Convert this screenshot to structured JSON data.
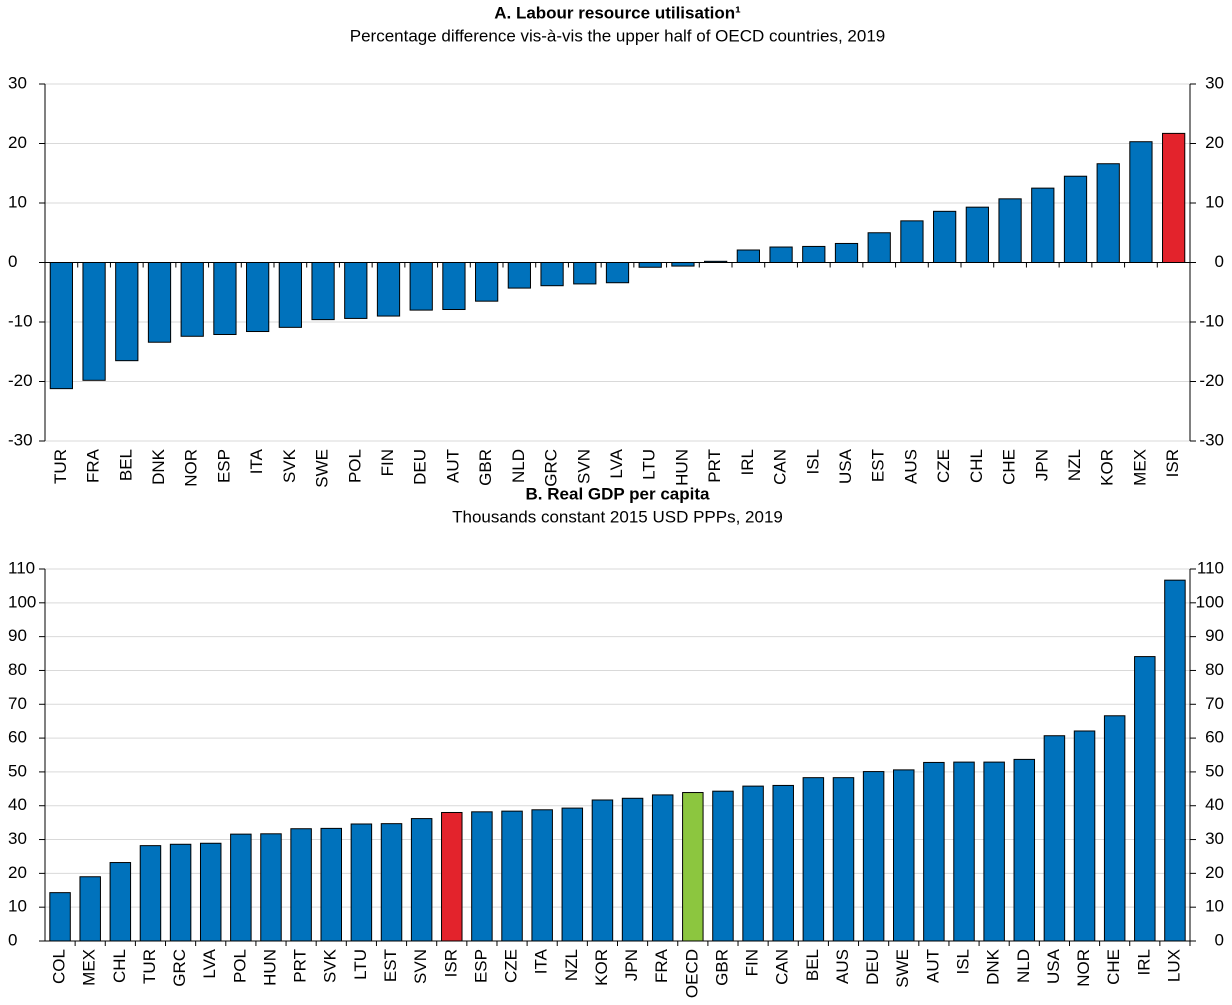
{
  "chart_data": [
    {
      "type": "bar",
      "title": "A. Labour resource utilisation¹",
      "subtitle": "Percentage difference vis-à-vis the upper half of OECD countries, 2019",
      "categories": [
        "TUR",
        "FRA",
        "BEL",
        "DNK",
        "NOR",
        "ESP",
        "ITA",
        "SVK",
        "SWE",
        "POL",
        "FIN",
        "DEU",
        "AUT",
        "GBR",
        "NLD",
        "GRC",
        "SVN",
        "LVA",
        "LTU",
        "HUN",
        "PRT",
        "IRL",
        "CAN",
        "ISL",
        "USA",
        "EST",
        "AUS",
        "CZE",
        "CHL",
        "CHE",
        "JPN",
        "NZL",
        "KOR",
        "MEX",
        "ISR"
      ],
      "values": [
        -21.2,
        -19.8,
        -16.5,
        -13.4,
        -12.4,
        -12.1,
        -11.6,
        -10.9,
        -9.6,
        -9.4,
        -9.0,
        -8.0,
        -7.9,
        -6.5,
        -4.3,
        -3.9,
        -3.6,
        -3.4,
        -0.8,
        -0.6,
        0.2,
        2.1,
        2.6,
        2.7,
        3.2,
        5.0,
        7.0,
        8.6,
        9.3,
        10.7,
        12.5,
        14.5,
        16.6,
        20.3,
        21.7
      ],
      "colors": [
        "#0072bc",
        "#0072bc",
        "#0072bc",
        "#0072bc",
        "#0072bc",
        "#0072bc",
        "#0072bc",
        "#0072bc",
        "#0072bc",
        "#0072bc",
        "#0072bc",
        "#0072bc",
        "#0072bc",
        "#0072bc",
        "#0072bc",
        "#0072bc",
        "#0072bc",
        "#0072bc",
        "#0072bc",
        "#0072bc",
        "#0072bc",
        "#0072bc",
        "#0072bc",
        "#0072bc",
        "#0072bc",
        "#0072bc",
        "#0072bc",
        "#0072bc",
        "#0072bc",
        "#0072bc",
        "#0072bc",
        "#0072bc",
        "#0072bc",
        "#0072bc",
        "#e3232c"
      ],
      "ylim": [
        -30,
        30
      ],
      "yticks": [
        -30,
        -20,
        -10,
        0,
        10,
        20,
        30
      ],
      "grid": true
    },
    {
      "type": "bar",
      "title": "B. Real GDP per capita",
      "subtitle": "Thousands constant 2015 USD PPPs, 2019",
      "categories": [
        "COL",
        "MEX",
        "CHL",
        "TUR",
        "GRC",
        "LVA",
        "POL",
        "HUN",
        "PRT",
        "SVK",
        "LTU",
        "EST",
        "SVN",
        "ISR",
        "ESP",
        "CZE",
        "ITA",
        "NZL",
        "KOR",
        "JPN",
        "FRA",
        "OECD",
        "GBR",
        "FIN",
        "CAN",
        "BEL",
        "AUS",
        "DEU",
        "SWE",
        "AUT",
        "ISL",
        "DNK",
        "NLD",
        "USA",
        "NOR",
        "CHE",
        "IRL",
        "LUX"
      ],
      "values": [
        14.3,
        19.0,
        23.2,
        28.2,
        28.6,
        28.9,
        31.6,
        31.7,
        33.2,
        33.3,
        34.6,
        34.7,
        36.2,
        38.0,
        38.2,
        38.4,
        38.8,
        39.3,
        41.7,
        42.2,
        43.2,
        43.9,
        44.3,
        45.8,
        46.0,
        48.3,
        48.3,
        50.1,
        50.6,
        52.8,
        52.9,
        52.9,
        53.7,
        60.7,
        62.1,
        66.6,
        84.1,
        106.7
      ],
      "colors": [
        "#0072bc",
        "#0072bc",
        "#0072bc",
        "#0072bc",
        "#0072bc",
        "#0072bc",
        "#0072bc",
        "#0072bc",
        "#0072bc",
        "#0072bc",
        "#0072bc",
        "#0072bc",
        "#0072bc",
        "#e3232c",
        "#0072bc",
        "#0072bc",
        "#0072bc",
        "#0072bc",
        "#0072bc",
        "#0072bc",
        "#0072bc",
        "#8cc63f",
        "#0072bc",
        "#0072bc",
        "#0072bc",
        "#0072bc",
        "#0072bc",
        "#0072bc",
        "#0072bc",
        "#0072bc",
        "#0072bc",
        "#0072bc",
        "#0072bc",
        "#0072bc",
        "#0072bc",
        "#0072bc",
        "#0072bc",
        "#0072bc"
      ],
      "ylim": [
        0,
        110
      ],
      "yticks": [
        0,
        10,
        20,
        30,
        40,
        50,
        60,
        70,
        80,
        90,
        100,
        110
      ],
      "grid": true
    }
  ]
}
